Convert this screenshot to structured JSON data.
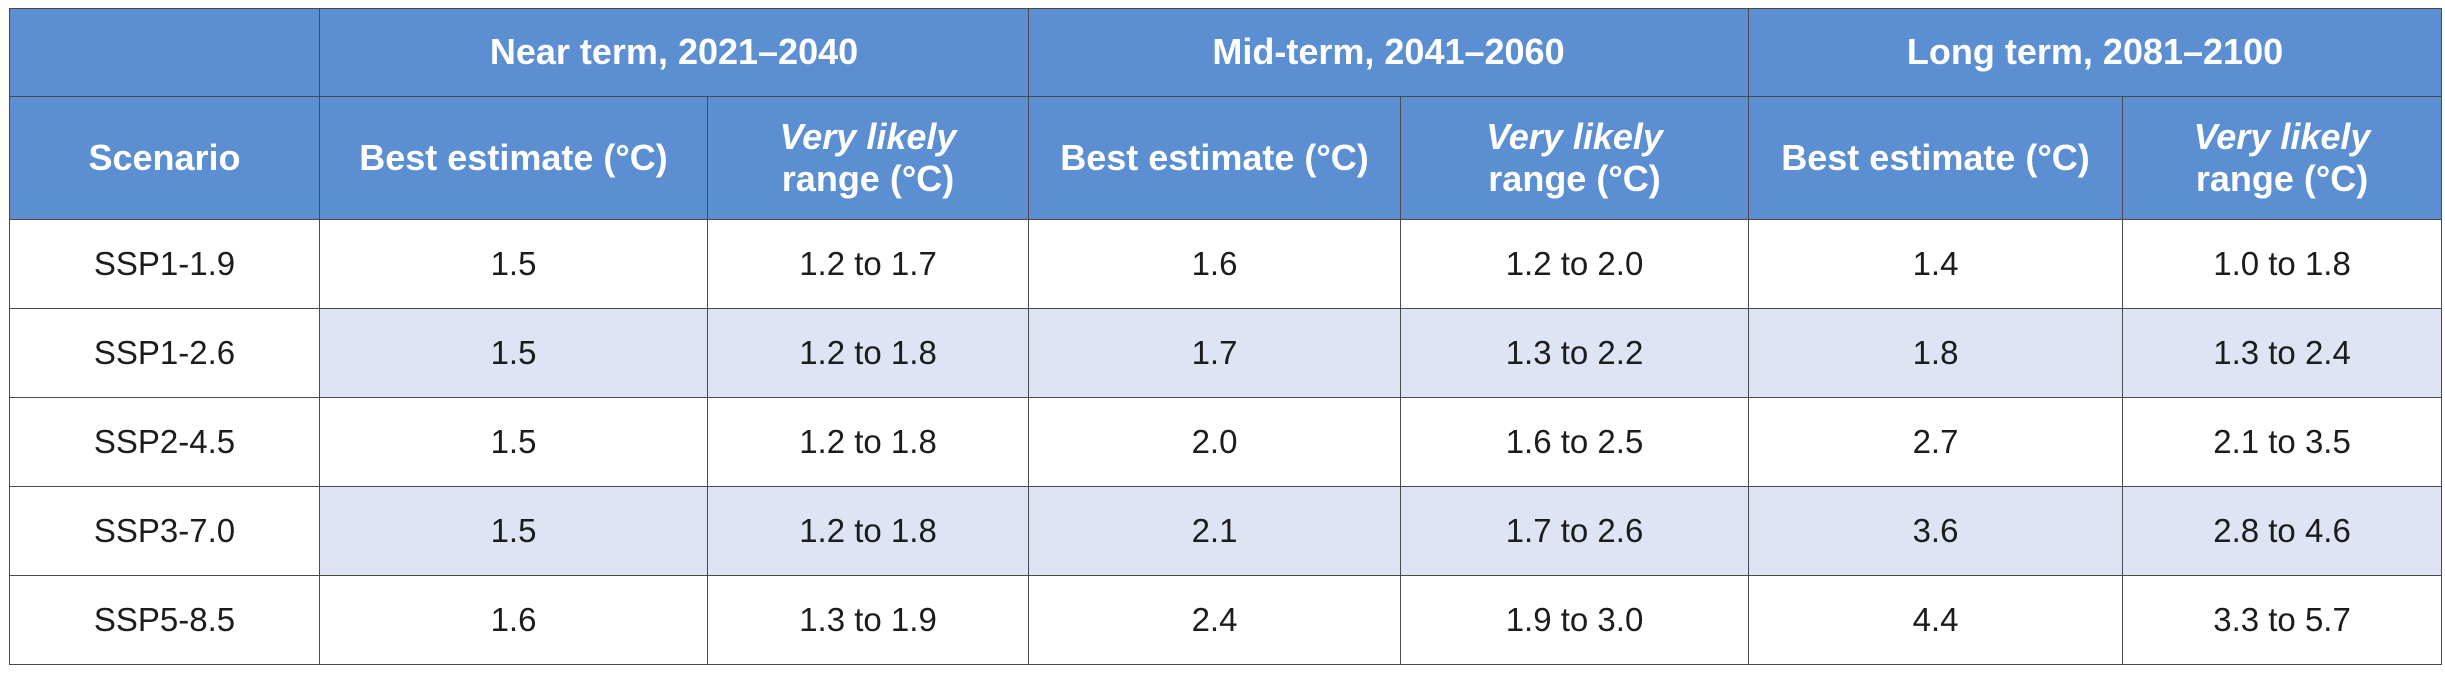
{
  "table": {
    "period_headers": [
      "Near term, 2021–2040",
      "Mid-term, 2041–2060",
      "Long term, 2081–2100"
    ],
    "scenario_header": "Scenario",
    "best_estimate_header": "Best estimate (°C)",
    "very_likely_header": "Very likely",
    "range_header": "range (°C)",
    "rows": [
      {
        "scenario": "SSP1-1.9",
        "near_best": "1.5",
        "near_range": "1.2 to 1.7",
        "mid_best": "1.6",
        "mid_range": "1.2 to 2.0",
        "long_best": "1.4",
        "long_range": "1.0 to 1.8"
      },
      {
        "scenario": "SSP1-2.6",
        "near_best": "1.5",
        "near_range": "1.2 to 1.8",
        "mid_best": "1.7",
        "mid_range": "1.3 to 2.2",
        "long_best": "1.8",
        "long_range": "1.3 to 2.4"
      },
      {
        "scenario": "SSP2-4.5",
        "near_best": "1.5",
        "near_range": "1.2 to 1.8",
        "mid_best": "2.0",
        "mid_range": "1.6 to 2.5",
        "long_best": "2.7",
        "long_range": "2.1 to 3.5"
      },
      {
        "scenario": "SSP3-7.0",
        "near_best": "1.5",
        "near_range": "1.2 to 1.8",
        "mid_best": "2.1",
        "mid_range": "1.7 to 2.6",
        "long_best": "3.6",
        "long_range": "2.8 to 4.6"
      },
      {
        "scenario": "SSP5-8.5",
        "near_best": "1.6",
        "near_range": "1.3 to 1.9",
        "mid_best": "2.4",
        "mid_range": "1.9 to 3.0",
        "long_best": "4.4",
        "long_range": "3.3 to 5.7"
      }
    ]
  },
  "colors": {
    "header_background": "#5b8fd2",
    "header_text": "#ffffff",
    "shaded_row": "#dfe4f4",
    "border": "#4a4a4a"
  }
}
